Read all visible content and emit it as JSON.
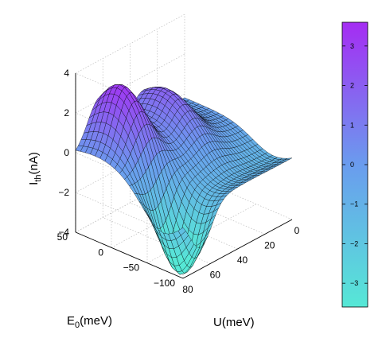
{
  "chart_data": {
    "type": "surface",
    "zlabel": "I",
    "zlabel_sub": "th",
    "zlabel_unit": "(nA)",
    "xlabel": "U(meV)",
    "ylabel": "E",
    "ylabel_sub": "0",
    "ylabel_unit": "(meV)",
    "z_ticks": [
      "4",
      "2",
      "0",
      "−2",
      "−4"
    ],
    "u_ticks": [
      "80",
      "60",
      "40",
      "20",
      "0"
    ],
    "e_ticks": [
      "50",
      "0",
      "−50",
      "−100"
    ],
    "u_range": [
      0,
      80
    ],
    "e0_range": [
      -100,
      50
    ],
    "z_range": [
      -4,
      4
    ],
    "grid": true,
    "colorbar": {
      "ticks": [
        "3",
        "2",
        "1",
        "0",
        "−1",
        "−2",
        "−3"
      ],
      "range": [
        -3.6,
        3.6
      ],
      "colors": [
        "#56e8d6",
        "#6a9cee",
        "#a52cf3"
      ]
    },
    "ridges": [
      {
        "name": "",
        "u_center": 62,
        "e0_peak": 20,
        "peak_nA": 3.4
      },
      {
        "name": "",
        "u_center": 30,
        "e0_peak": 20,
        "peak_nA": 2.0
      }
    ],
    "trough_nA": -3.6
  }
}
